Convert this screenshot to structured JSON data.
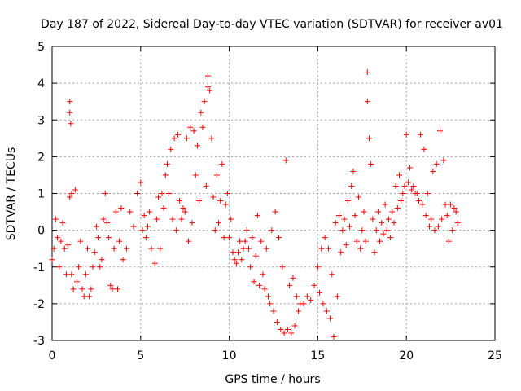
{
  "chart_data": {
    "type": "scatter",
    "title": "Day 187 of 2022, Sidereal Day-to-day VTEC variation (SDTVAR) for receiver av01",
    "xlabel": "GPS time / hours",
    "ylabel": "SDTVAR / TECUs",
    "xlim": [
      0,
      25
    ],
    "ylim": [
      -3,
      5
    ],
    "x_ticks": [
      0,
      5,
      10,
      15,
      20,
      25
    ],
    "y_ticks": [
      -3,
      -2,
      -1,
      0,
      1,
      2,
      3,
      4,
      5
    ],
    "x_tick_labels": [
      "0",
      "5",
      "10",
      "15",
      "20",
      "25"
    ],
    "y_tick_labels": [
      "-3",
      "-2",
      "-1",
      "0",
      "1",
      "2",
      "3",
      "4",
      "5"
    ],
    "grid": true,
    "marker": "+",
    "color": "#ff0000",
    "series": [
      {
        "name": "SDTVAR",
        "points": [
          [
            0.0,
            -0.8
          ],
          [
            0.1,
            -0.5
          ],
          [
            0.2,
            0.3
          ],
          [
            0.3,
            -0.2
          ],
          [
            0.4,
            -1.0
          ],
          [
            0.5,
            -0.3
          ],
          [
            0.6,
            0.2
          ],
          [
            0.7,
            -0.5
          ],
          [
            0.8,
            -1.2
          ],
          [
            0.9,
            -0.4
          ],
          [
            1.0,
            0.9
          ],
          [
            1.0,
            3.5
          ],
          [
            1.0,
            3.2
          ],
          [
            1.05,
            2.9
          ],
          [
            1.1,
            1.0
          ],
          [
            1.1,
            -1.2
          ],
          [
            1.2,
            -1.6
          ],
          [
            1.3,
            1.1
          ],
          [
            1.4,
            -1.4
          ],
          [
            1.5,
            -1.0
          ],
          [
            1.6,
            -0.3
          ],
          [
            1.7,
            -1.6
          ],
          [
            1.8,
            -1.8
          ],
          [
            1.9,
            -1.2
          ],
          [
            2.0,
            -0.5
          ],
          [
            2.1,
            -1.8
          ],
          [
            2.2,
            -1.6
          ],
          [
            2.3,
            -1.0
          ],
          [
            2.4,
            -0.6
          ],
          [
            2.5,
            0.1
          ],
          [
            2.6,
            -0.2
          ],
          [
            2.7,
            -1.0
          ],
          [
            2.8,
            -0.8
          ],
          [
            2.9,
            0.3
          ],
          [
            3.0,
            1.0
          ],
          [
            3.1,
            0.2
          ],
          [
            3.2,
            -0.2
          ],
          [
            3.3,
            -1.5
          ],
          [
            3.4,
            -1.6
          ],
          [
            3.5,
            -0.5
          ],
          [
            3.6,
            0.5
          ],
          [
            3.7,
            -1.6
          ],
          [
            3.8,
            -0.3
          ],
          [
            3.9,
            0.6
          ],
          [
            4.0,
            -0.8
          ],
          [
            4.2,
            -0.5
          ],
          [
            4.4,
            0.5
          ],
          [
            4.6,
            0.1
          ],
          [
            4.8,
            1.0
          ],
          [
            5.0,
            1.3
          ],
          [
            5.1,
            0.0
          ],
          [
            5.2,
            0.4
          ],
          [
            5.3,
            -0.2
          ],
          [
            5.4,
            0.1
          ],
          [
            5.5,
            0.5
          ],
          [
            5.6,
            -0.5
          ],
          [
            5.8,
            -0.9
          ],
          [
            5.9,
            0.3
          ],
          [
            6.0,
            0.9
          ],
          [
            6.1,
            -0.5
          ],
          [
            6.2,
            1.0
          ],
          [
            6.3,
            0.6
          ],
          [
            6.4,
            1.5
          ],
          [
            6.5,
            1.8
          ],
          [
            6.6,
            1.0
          ],
          [
            6.7,
            2.2
          ],
          [
            6.8,
            0.3
          ],
          [
            6.9,
            2.5
          ],
          [
            7.0,
            0.0
          ],
          [
            7.1,
            2.6
          ],
          [
            7.2,
            0.8
          ],
          [
            7.3,
            0.3
          ],
          [
            7.4,
            0.6
          ],
          [
            7.5,
            0.5
          ],
          [
            7.6,
            2.5
          ],
          [
            7.7,
            -0.3
          ],
          [
            7.8,
            2.8
          ],
          [
            7.9,
            0.2
          ],
          [
            8.0,
            2.7
          ],
          [
            8.1,
            1.5
          ],
          [
            8.2,
            2.3
          ],
          [
            8.3,
            0.8
          ],
          [
            8.4,
            3.2
          ],
          [
            8.5,
            2.8
          ],
          [
            8.6,
            3.5
          ],
          [
            8.7,
            1.2
          ],
          [
            8.8,
            4.2
          ],
          [
            8.8,
            3.9
          ],
          [
            8.9,
            3.8
          ],
          [
            9.0,
            2.5
          ],
          [
            9.1,
            0.9
          ],
          [
            9.2,
            0.0
          ],
          [
            9.3,
            1.5
          ],
          [
            9.4,
            0.2
          ],
          [
            9.5,
            0.8
          ],
          [
            9.6,
            1.8
          ],
          [
            9.7,
            -0.2
          ],
          [
            9.8,
            0.7
          ],
          [
            9.9,
            1.0
          ],
          [
            10.0,
            -0.2
          ],
          [
            10.1,
            0.3
          ],
          [
            10.2,
            -0.6
          ],
          [
            10.3,
            -0.8
          ],
          [
            10.4,
            -0.9
          ],
          [
            10.5,
            -0.6
          ],
          [
            10.6,
            -0.3
          ],
          [
            10.7,
            -0.8
          ],
          [
            10.8,
            -0.5
          ],
          [
            10.9,
            -0.3
          ],
          [
            11.0,
            0.0
          ],
          [
            11.1,
            -0.5
          ],
          [
            11.2,
            -1.0
          ],
          [
            11.3,
            -0.2
          ],
          [
            11.4,
            -1.4
          ],
          [
            11.5,
            -0.7
          ],
          [
            11.6,
            0.4
          ],
          [
            11.7,
            -1.5
          ],
          [
            11.8,
            -0.3
          ],
          [
            11.9,
            -1.2
          ],
          [
            12.0,
            -1.6
          ],
          [
            12.1,
            -0.5
          ],
          [
            12.2,
            -1.8
          ],
          [
            12.3,
            -2.0
          ],
          [
            12.4,
            0.0
          ],
          [
            12.5,
            -2.2
          ],
          [
            12.6,
            0.5
          ],
          [
            12.7,
            -2.5
          ],
          [
            12.8,
            -0.2
          ],
          [
            12.9,
            -2.7
          ],
          [
            13.0,
            -1.0
          ],
          [
            13.1,
            -2.8
          ],
          [
            13.2,
            1.9
          ],
          [
            13.3,
            -2.7
          ],
          [
            13.4,
            -1.5
          ],
          [
            13.5,
            -2.8
          ],
          [
            13.6,
            -1.3
          ],
          [
            13.7,
            -2.6
          ],
          [
            13.8,
            -1.8
          ],
          [
            13.9,
            -2.2
          ],
          [
            14.0,
            -2.0
          ],
          [
            14.2,
            -2.0
          ],
          [
            14.4,
            -1.8
          ],
          [
            14.6,
            -1.9
          ],
          [
            14.8,
            -1.5
          ],
          [
            15.0,
            -1.0
          ],
          [
            15.1,
            -1.7
          ],
          [
            15.2,
            -0.5
          ],
          [
            15.3,
            -2.0
          ],
          [
            15.4,
            -0.2
          ],
          [
            15.5,
            -2.2
          ],
          [
            15.6,
            -0.5
          ],
          [
            15.7,
            -2.4
          ],
          [
            15.8,
            -1.2
          ],
          [
            15.9,
            -2.9
          ],
          [
            16.0,
            0.2
          ],
          [
            16.1,
            -1.8
          ],
          [
            16.2,
            0.4
          ],
          [
            16.3,
            -0.6
          ],
          [
            16.4,
            0.0
          ],
          [
            16.5,
            0.3
          ],
          [
            16.6,
            -0.4
          ],
          [
            16.7,
            0.8
          ],
          [
            16.8,
            0.1
          ],
          [
            16.9,
            1.2
          ],
          [
            17.0,
            1.6
          ],
          [
            17.1,
            0.4
          ],
          [
            17.2,
            -0.3
          ],
          [
            17.3,
            0.9
          ],
          [
            17.4,
            -0.5
          ],
          [
            17.5,
            0.0
          ],
          [
            17.6,
            0.5
          ],
          [
            17.7,
            -0.3
          ],
          [
            17.8,
            3.5
          ],
          [
            17.8,
            4.3
          ],
          [
            17.9,
            2.5
          ],
          [
            18.0,
            1.8
          ],
          [
            18.1,
            0.3
          ],
          [
            18.2,
            -0.6
          ],
          [
            18.3,
            0.0
          ],
          [
            18.4,
            0.5
          ],
          [
            18.5,
            -0.3
          ],
          [
            18.6,
            0.2
          ],
          [
            18.7,
            -0.1
          ],
          [
            18.8,
            0.7
          ],
          [
            18.9,
            0.0
          ],
          [
            19.0,
            0.3
          ],
          [
            19.1,
            -0.2
          ],
          [
            19.2,
            0.5
          ],
          [
            19.3,
            0.2
          ],
          [
            19.4,
            1.2
          ],
          [
            19.5,
            0.6
          ],
          [
            19.6,
            1.5
          ],
          [
            19.7,
            0.8
          ],
          [
            19.8,
            1.0
          ],
          [
            19.9,
            1.2
          ],
          [
            20.0,
            2.6
          ],
          [
            20.1,
            1.3
          ],
          [
            20.2,
            1.7
          ],
          [
            20.3,
            1.1
          ],
          [
            20.4,
            1.2
          ],
          [
            20.5,
            1.0
          ],
          [
            20.6,
            1.0
          ],
          [
            20.7,
            0.8
          ],
          [
            20.8,
            2.6
          ],
          [
            20.9,
            0.7
          ],
          [
            21.0,
            2.2
          ],
          [
            21.1,
            0.4
          ],
          [
            21.2,
            1.0
          ],
          [
            21.3,
            0.1
          ],
          [
            21.4,
            0.3
          ],
          [
            21.5,
            1.6
          ],
          [
            21.6,
            0.0
          ],
          [
            21.7,
            1.8
          ],
          [
            21.8,
            0.1
          ],
          [
            21.9,
            2.7
          ],
          [
            22.0,
            0.3
          ],
          [
            22.1,
            1.9
          ],
          [
            22.2,
            0.7
          ],
          [
            22.3,
            0.4
          ],
          [
            22.4,
            -0.3
          ],
          [
            22.5,
            0.7
          ],
          [
            22.6,
            0.0
          ],
          [
            22.7,
            0.6
          ],
          [
            22.8,
            0.5
          ],
          [
            22.9,
            0.2
          ]
        ]
      }
    ]
  }
}
